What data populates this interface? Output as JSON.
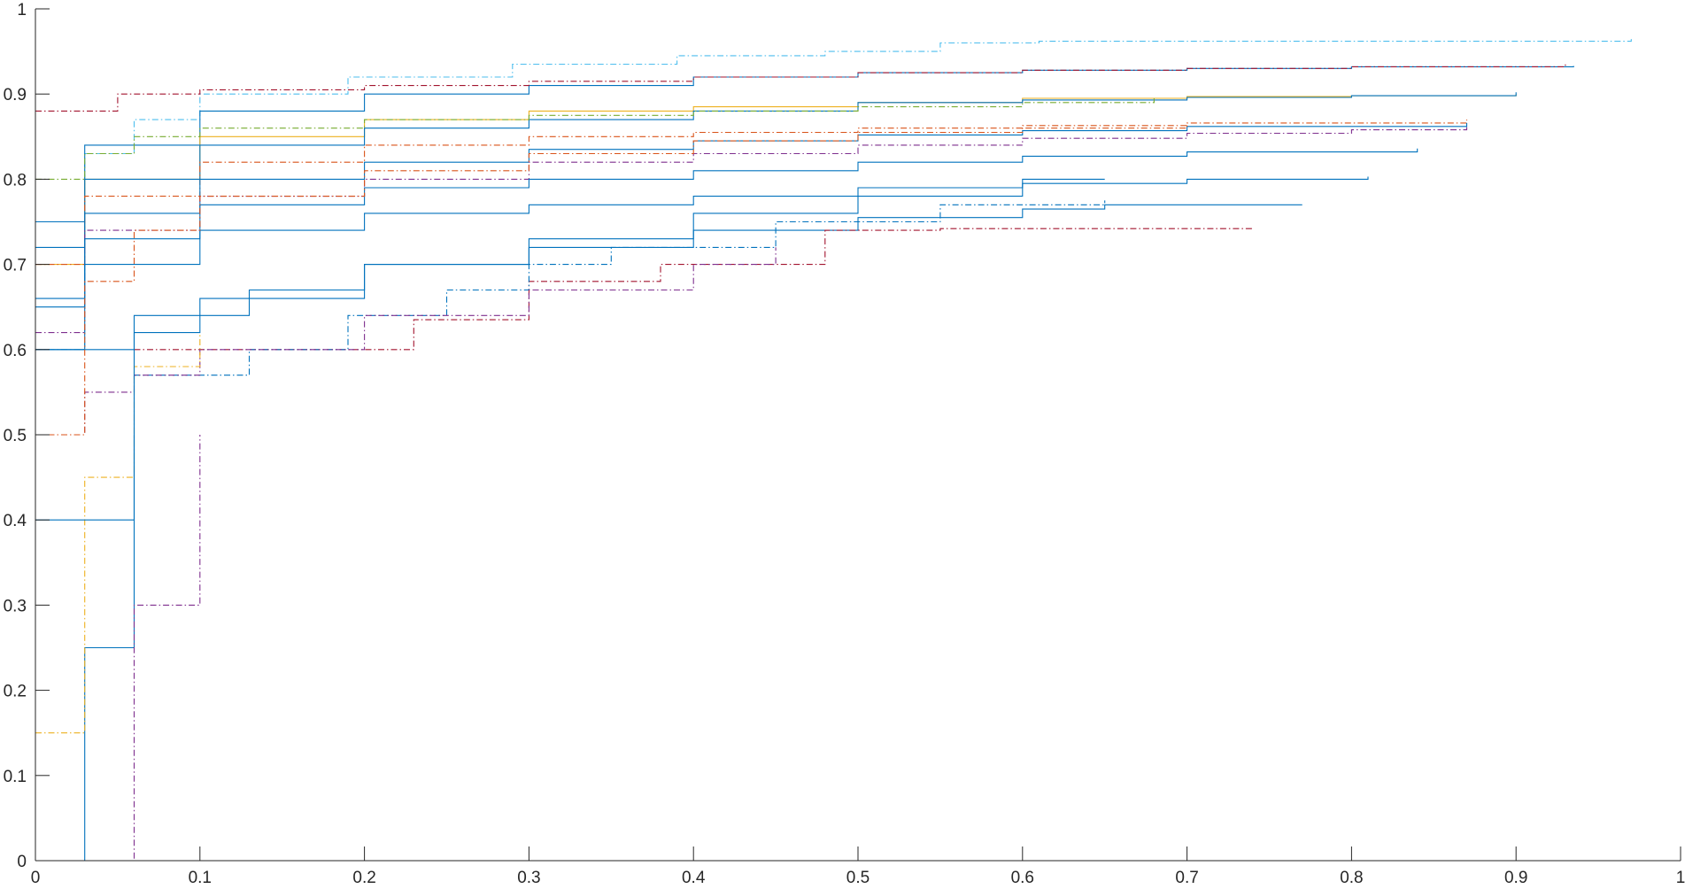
{
  "chart_data": {
    "type": "line",
    "title": "",
    "xlabel": "",
    "ylabel": "",
    "xlim": [
      0,
      1
    ],
    "ylim": [
      0,
      1
    ],
    "grid": false,
    "box": "axes lines on left and bottom only",
    "x_ticks": [
      "0",
      "0.1",
      "0.2",
      "0.3",
      "0.4",
      "0.5",
      "0.6",
      "0.7",
      "0.8",
      "0.9",
      "1"
    ],
    "y_ticks": [
      "0",
      "0.1",
      "0.2",
      "0.3",
      "0.4",
      "0.5",
      "0.6",
      "0.7",
      "0.8",
      "0.9",
      "1"
    ],
    "line_styles": [
      "solid",
      "dash-dot"
    ],
    "colors": [
      "#0072BD",
      "#D95319",
      "#EDB120",
      "#7E2F8E",
      "#77AC30",
      "#4DBEEE",
      "#A2142F"
    ],
    "series_note": "Hundreds of overlapping step-like curves; representative subset listed below (values estimated from the axes).",
    "series": [
      {
        "style": "dashdot",
        "color": "#4DBEEE",
        "x": [
          0,
          0.03,
          0.06,
          0.1,
          0.19,
          0.29,
          0.39,
          0.48,
          0.55,
          0.61,
          0.97
        ],
        "y": [
          0.6,
          0.83,
          0.87,
          0.9,
          0.92,
          0.935,
          0.945,
          0.95,
          0.96,
          0.962,
          0.965
        ]
      },
      {
        "style": "solid",
        "color": "#0072BD",
        "x": [
          0,
          0.03,
          0.1,
          0.2,
          0.3,
          0.4,
          0.5,
          0.6,
          0.7,
          0.8,
          0.935
        ],
        "y": [
          0.75,
          0.84,
          0.88,
          0.9,
          0.91,
          0.92,
          0.925,
          0.928,
          0.93,
          0.932,
          0.933
        ]
      },
      {
        "style": "dashdot",
        "color": "#A2142F",
        "x": [
          0,
          0.05,
          0.1,
          0.2,
          0.3,
          0.4,
          0.5,
          0.6,
          0.7,
          0.8,
          0.93
        ],
        "y": [
          0.88,
          0.9,
          0.905,
          0.91,
          0.915,
          0.92,
          0.925,
          0.928,
          0.93,
          0.932,
          0.935
        ]
      },
      {
        "style": "solid",
        "color": "#EDB120",
        "x": [
          0,
          0.03,
          0.1,
          0.2,
          0.3,
          0.4,
          0.5,
          0.6,
          0.7,
          0.8,
          0.9
        ],
        "y": [
          0.7,
          0.8,
          0.85,
          0.87,
          0.88,
          0.885,
          0.89,
          0.895,
          0.897,
          0.898,
          0.9
        ]
      },
      {
        "style": "solid",
        "color": "#0072BD",
        "x": [
          0,
          0.03,
          0.1,
          0.2,
          0.3,
          0.4,
          0.5,
          0.6,
          0.7,
          0.8,
          0.9
        ],
        "y": [
          0.72,
          0.8,
          0.84,
          0.86,
          0.87,
          0.88,
          0.89,
          0.893,
          0.896,
          0.898,
          0.902
        ]
      },
      {
        "style": "dashdot",
        "color": "#D95319",
        "x": [
          0,
          0.03,
          0.1,
          0.2,
          0.3,
          0.4,
          0.5,
          0.6,
          0.7,
          0.87
        ],
        "y": [
          0.7,
          0.78,
          0.82,
          0.84,
          0.85,
          0.855,
          0.86,
          0.863,
          0.866,
          0.87
        ]
      },
      {
        "style": "solid",
        "color": "#0072BD",
        "x": [
          0,
          0.03,
          0.1,
          0.2,
          0.3,
          0.4,
          0.5,
          0.6,
          0.7,
          0.87
        ],
        "y": [
          0.66,
          0.76,
          0.8,
          0.82,
          0.835,
          0.845,
          0.852,
          0.857,
          0.862,
          0.866
        ]
      },
      {
        "style": "dashdot",
        "color": "#7E2F8E",
        "x": [
          0,
          0.03,
          0.1,
          0.2,
          0.3,
          0.4,
          0.5,
          0.6,
          0.7,
          0.8,
          0.87
        ],
        "y": [
          0.62,
          0.74,
          0.78,
          0.8,
          0.82,
          0.83,
          0.84,
          0.848,
          0.854,
          0.858,
          0.862
        ]
      },
      {
        "style": "solid",
        "color": "#0072BD",
        "x": [
          0,
          0.03,
          0.1,
          0.2,
          0.3,
          0.4,
          0.5,
          0.6,
          0.7,
          0.84
        ],
        "y": [
          0.65,
          0.73,
          0.77,
          0.79,
          0.8,
          0.81,
          0.82,
          0.827,
          0.832,
          0.836
        ]
      },
      {
        "style": "solid",
        "color": "#0072BD",
        "x": [
          0,
          0.03,
          0.1,
          0.2,
          0.3,
          0.4,
          0.5,
          0.6,
          0.7,
          0.81
        ],
        "y": [
          0.6,
          0.7,
          0.74,
          0.76,
          0.77,
          0.78,
          0.79,
          0.795,
          0.8,
          0.803
        ]
      },
      {
        "style": "solid",
        "color": "#0072BD",
        "x": [
          0,
          0.06,
          0.13,
          0.2,
          0.3,
          0.4,
          0.5,
          0.6,
          0.65,
          0.77
        ],
        "y": [
          0.6,
          0.64,
          0.67,
          0.7,
          0.72,
          0.74,
          0.755,
          0.765,
          0.77,
          0.77
        ]
      },
      {
        "style": "dashdot",
        "color": "#A2142F",
        "x": [
          0.06,
          0.15,
          0.22,
          0.23,
          0.29,
          0.3,
          0.38,
          0.48,
          0.55,
          0.74
        ],
        "y": [
          0.6,
          0.6,
          0.6,
          0.635,
          0.635,
          0.68,
          0.7,
          0.74,
          0.742,
          0.742
        ]
      },
      {
        "style": "dashdot",
        "color": "#0072BD",
        "x": [
          0.06,
          0.13,
          0.19,
          0.25,
          0.3,
          0.35,
          0.45,
          0.55,
          0.65
        ],
        "y": [
          0.57,
          0.6,
          0.64,
          0.67,
          0.7,
          0.72,
          0.75,
          0.77,
          0.775
        ]
      },
      {
        "style": "dashdot",
        "color": "#7E2F8E",
        "x": [
          0,
          0.03,
          0.06,
          0.1,
          0.2,
          0.3,
          0.4,
          0.45
        ],
        "y": [
          0.5,
          0.55,
          0.57,
          0.6,
          0.64,
          0.67,
          0.7,
          0.72
        ]
      },
      {
        "style": "dashdot",
        "color": "#77AC30",
        "x": [
          0,
          0.03,
          0.06,
          0.1,
          0.2,
          0.3,
          0.4,
          0.5,
          0.6,
          0.68
        ],
        "y": [
          0.8,
          0.83,
          0.85,
          0.86,
          0.87,
          0.875,
          0.88,
          0.885,
          0.89,
          0.895
        ]
      },
      {
        "style": "solid",
        "color": "#0072BD",
        "x": [
          0,
          0.03,
          0.06
        ],
        "y": [
          0,
          0.25,
          0.5
        ]
      },
      {
        "style": "dashdot",
        "color": "#7E2F8E",
        "x": [
          0.03,
          0.06,
          0.1
        ],
        "y": [
          0,
          0.3,
          0.5
        ]
      },
      {
        "style": "dashdot",
        "color": "#EDB120",
        "x": [
          0,
          0.03,
          0.06,
          0.1
        ],
        "y": [
          0.15,
          0.45,
          0.58,
          0.62
        ]
      },
      {
        "style": "solid",
        "color": "#0072BD",
        "x": [
          0,
          0.06,
          0.1,
          0.2,
          0.3,
          0.4,
          0.5,
          0.6,
          0.65
        ],
        "y": [
          0.4,
          0.62,
          0.66,
          0.7,
          0.73,
          0.76,
          0.78,
          0.8,
          0.8
        ]
      },
      {
        "style": "dashdot",
        "color": "#D95319",
        "x": [
          0,
          0.03,
          0.06,
          0.1,
          0.2,
          0.3,
          0.4,
          0.5,
          0.6,
          0.7
        ],
        "y": [
          0.5,
          0.68,
          0.74,
          0.78,
          0.81,
          0.83,
          0.845,
          0.855,
          0.86,
          0.865
        ]
      }
    ]
  }
}
